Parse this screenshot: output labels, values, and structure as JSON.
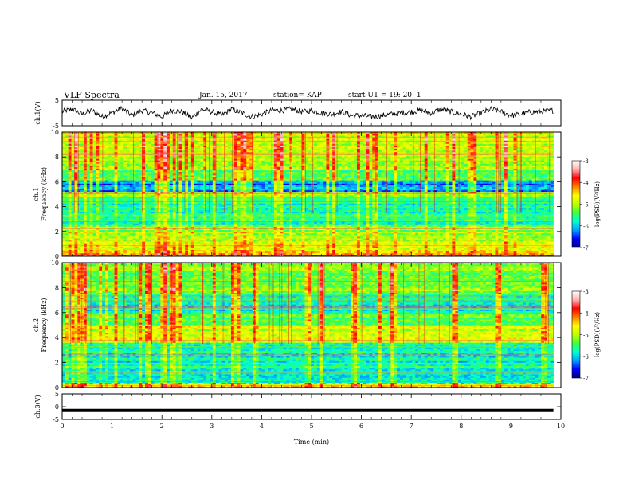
{
  "header": {
    "title": "VLF Spectra",
    "date": "Jan. 15, 2017",
    "station": "station= KAP",
    "start": "start  UT =   19: 20: 1"
  },
  "chart_data": [
    {
      "type": "line",
      "panel": "ch1-waveform",
      "ylabel": "ch.1(V)",
      "ylim": [
        -5,
        5
      ],
      "yticks": [
        "5",
        "-5"
      ],
      "xlim": [
        0,
        10
      ],
      "x_end": 9.85,
      "series": [
        {
          "x": [
            0,
            0.2,
            0.4,
            0.6,
            0.8,
            1.0,
            1.2,
            1.4,
            1.6,
            1.8,
            2.0,
            2.2,
            2.4,
            2.6,
            2.8,
            3.0,
            3.2,
            3.4,
            3.6,
            3.8,
            4.0,
            4.2,
            4.4,
            4.6,
            4.8,
            5.0,
            5.2,
            5.4,
            5.6,
            5.8,
            6.0,
            6.2,
            6.4,
            6.6,
            6.8,
            7.0,
            7.2,
            7.4,
            7.6,
            7.8,
            8.0,
            8.2,
            8.4,
            8.6,
            8.8,
            9.0,
            9.2,
            9.4,
            9.6,
            9.85
          ],
          "y": [
            0.5,
            1.5,
            -0.5,
            1.0,
            -1.5,
            0.2,
            1.8,
            -1.0,
            1.0,
            0.0,
            -1.5,
            1.0,
            0.5,
            -2.0,
            1.5,
            0.5,
            -1.0,
            1.5,
            0.0,
            -1.5,
            -0.5,
            1.0,
            1.0,
            1.5,
            0.5,
            1.0,
            0.0,
            -0.5,
            0.5,
            -1.0,
            -1.0,
            -1.5,
            -1.0,
            -0.5,
            0.0,
            0.5,
            1.0,
            0.0,
            1.5,
            0.5,
            -0.5,
            -1.5,
            0.0,
            1.5,
            0.5,
            -1.0,
            -0.5,
            0.5,
            0.5,
            1.0
          ]
        }
      ]
    },
    {
      "type": "heatmap",
      "panel": "ch1-spectrogram",
      "ylabel": "ch.1\nFrequency  (kHz)",
      "ylim": [
        0,
        10
      ],
      "yticks": [
        "0",
        "2",
        "4",
        "6",
        "8",
        "10"
      ],
      "xlim": [
        0,
        10
      ],
      "x_end": 9.85
    },
    {
      "type": "heatmap",
      "panel": "ch2-spectrogram",
      "ylabel": "ch.2\nFrequency  (kHz)",
      "ylim": [
        0,
        10
      ],
      "yticks": [
        "0",
        "2",
        "4",
        "6",
        "8",
        "10"
      ],
      "xlim": [
        0,
        10
      ],
      "x_end": 9.85
    },
    {
      "type": "line",
      "panel": "ch3-waveform",
      "ylabel": "ch.3(V)",
      "ylim": [
        -5,
        5
      ],
      "yticks": [
        "5",
        "0",
        "-5"
      ],
      "xlim": [
        0,
        10
      ],
      "xticks": [
        "0",
        "1",
        "2",
        "3",
        "4",
        "5",
        "6",
        "7",
        "8",
        "9",
        "10"
      ],
      "xlabel": "Time  (min)",
      "x_end": 9.85,
      "series": [
        {
          "x": [
            0,
            9.85
          ],
          "y": [
            -1.5,
            -1.5
          ]
        }
      ]
    }
  ],
  "colorbar": {
    "label": "log(PSD)(V²/Hz)",
    "ticks": [
      "-3",
      "-4",
      "-5",
      "-6",
      "-7"
    ],
    "range": [
      -7,
      -3
    ],
    "colors": [
      "#000080",
      "#0000ff",
      "#00a0ff",
      "#00ffd0",
      "#40ff40",
      "#c0ff00",
      "#ffff00",
      "#ff8000",
      "#ff0000",
      "#ffb0b0",
      "#ffffff"
    ]
  }
}
